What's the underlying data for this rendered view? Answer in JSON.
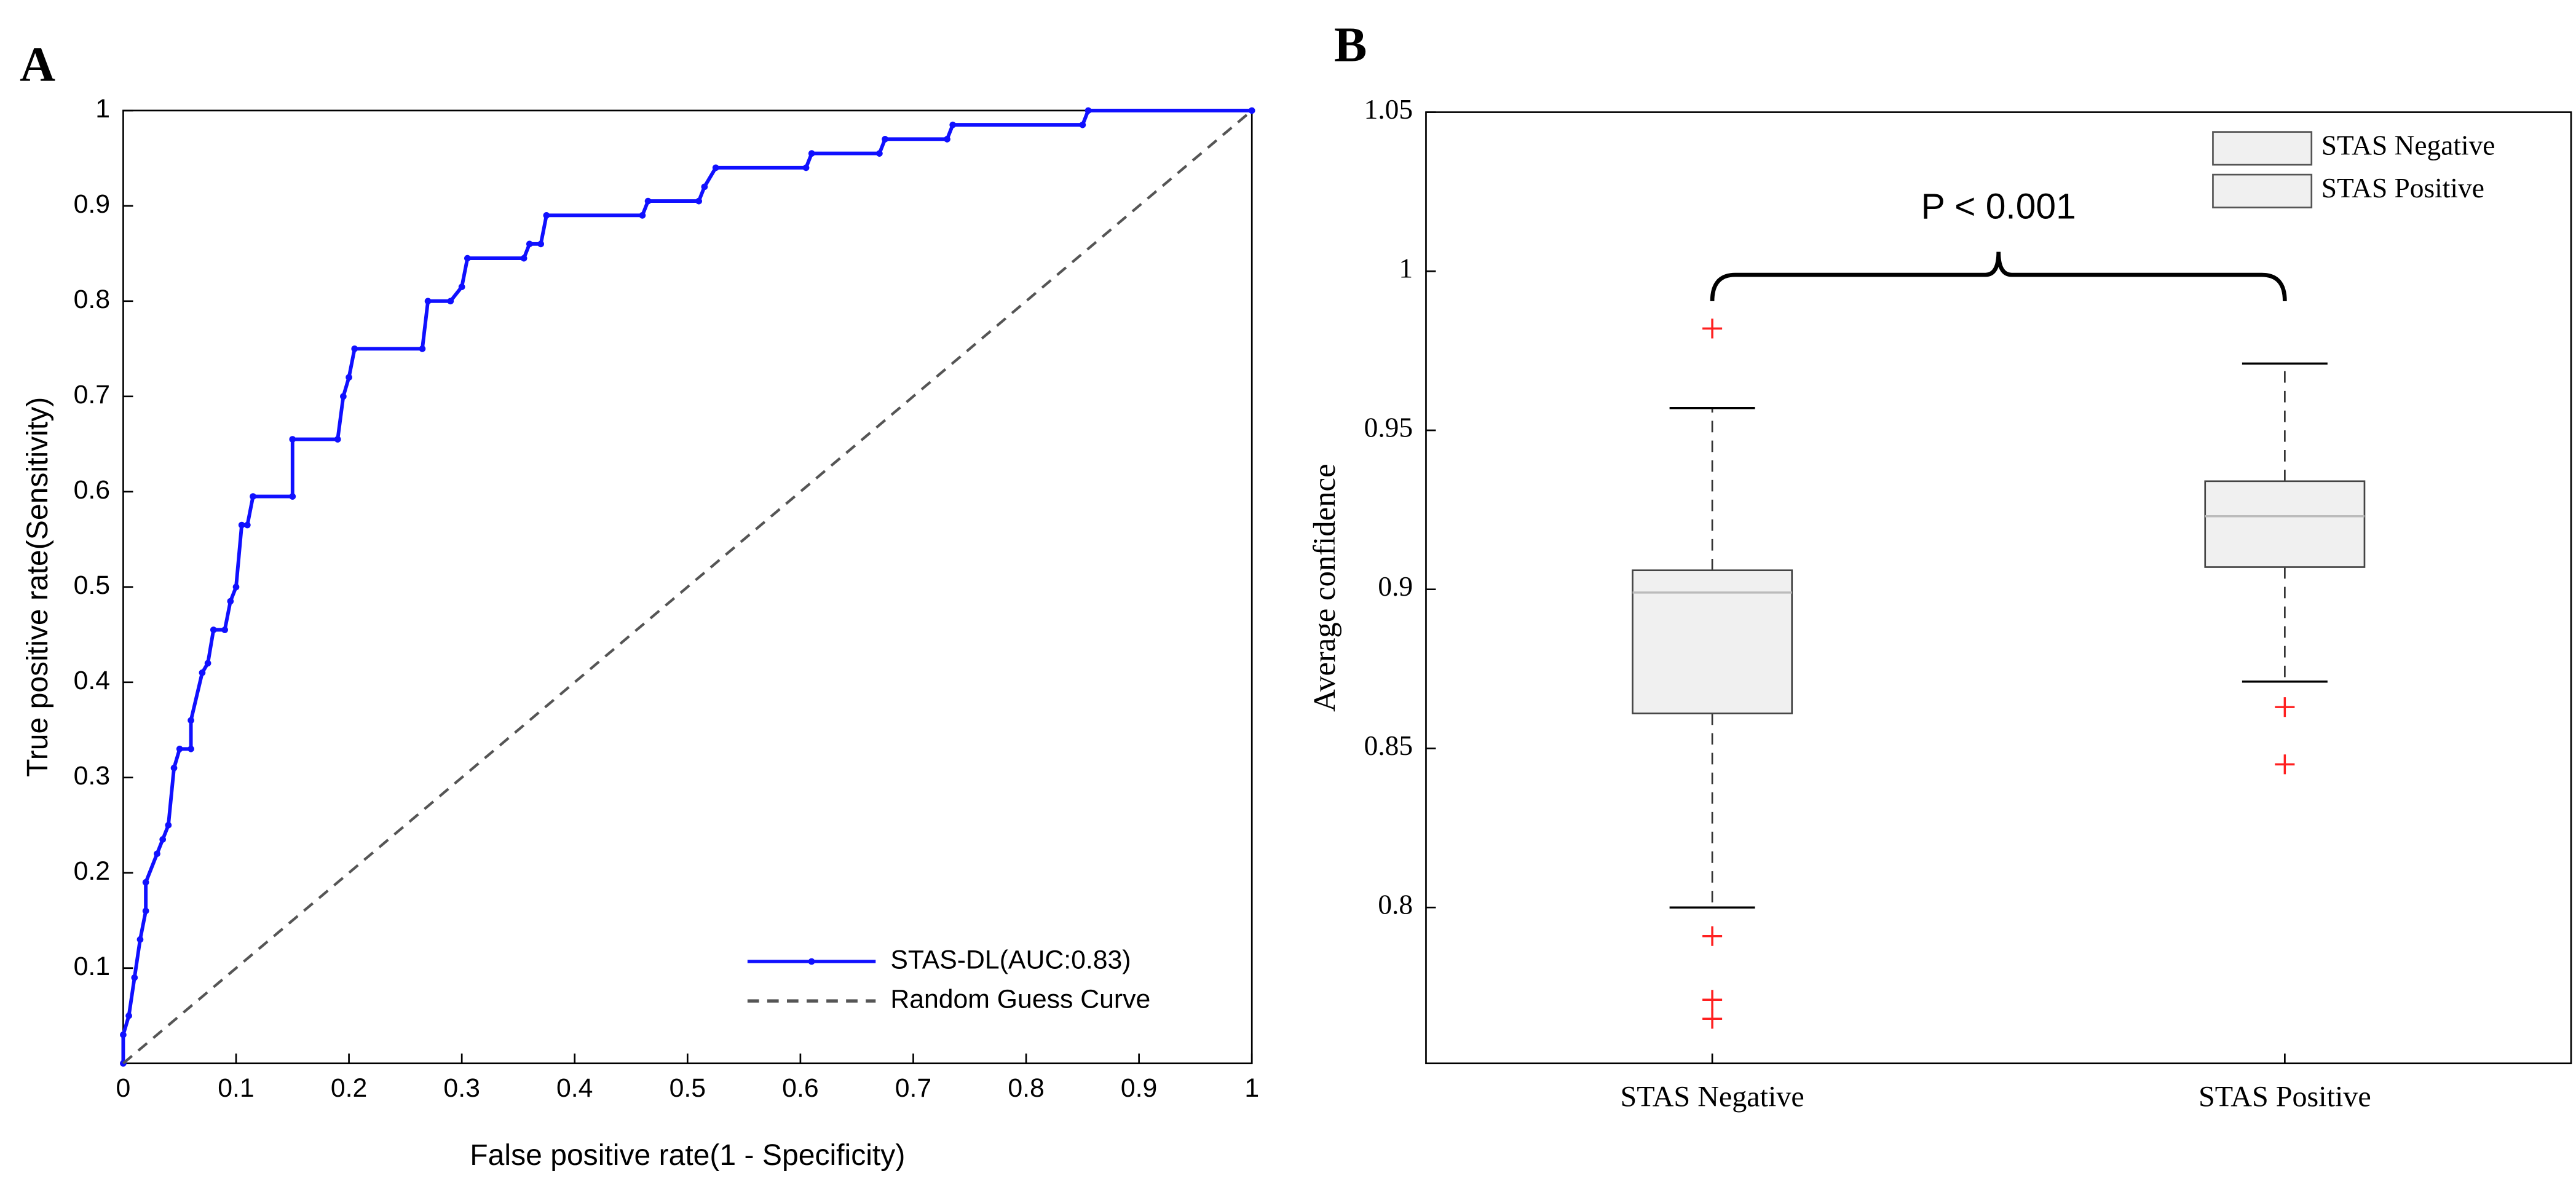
{
  "chart_data": [
    {
      "type": "line",
      "panel_label": "A",
      "xlabel": "False positive rate(1 - Specificity)",
      "ylabel": "True positive rate(Sensitivity)",
      "xlim": [
        0,
        1
      ],
      "ylim": [
        0,
        1
      ],
      "xticks": [
        0,
        0.1,
        0.2,
        0.3,
        0.4,
        0.5,
        0.6,
        0.7,
        0.8,
        0.9,
        1
      ],
      "yticks": [
        0.1,
        0.2,
        0.3,
        0.4,
        0.5,
        0.6,
        0.7,
        0.8,
        0.9,
        1
      ],
      "legend": "lower right",
      "series": [
        {
          "name": "STAS-DL(AUC:0.83)",
          "color": "#1010ff",
          "style": "solid",
          "markers": true,
          "x": [
            0,
            0,
            0.005,
            0.01,
            0.015,
            0.02,
            0.02,
            0.03,
            0.035,
            0.04,
            0.045,
            0.05,
            0.06,
            0.06,
            0.07,
            0.075,
            0.08,
            0.09,
            0.095,
            0.1,
            0.105,
            0.11,
            0.115,
            0.15,
            0.15,
            0.19,
            0.195,
            0.2,
            0.205,
            0.265,
            0.27,
            0.29,
            0.3,
            0.305,
            0.355,
            0.36,
            0.37,
            0.375,
            0.46,
            0.465,
            0.51,
            0.515,
            0.525,
            0.605,
            0.61,
            0.67,
            0.675,
            0.73,
            0.735,
            0.85,
            0.855,
            1
          ],
          "values": [
            0,
            0.03,
            0.05,
            0.09,
            0.13,
            0.16,
            0.19,
            0.22,
            0.235,
            0.25,
            0.31,
            0.33,
            0.33,
            0.36,
            0.41,
            0.42,
            0.455,
            0.455,
            0.485,
            0.5,
            0.565,
            0.565,
            0.595,
            0.595,
            0.655,
            0.655,
            0.7,
            0.72,
            0.75,
            0.75,
            0.8,
            0.8,
            0.815,
            0.845,
            0.845,
            0.86,
            0.86,
            0.89,
            0.89,
            0.905,
            0.905,
            0.92,
            0.94,
            0.94,
            0.955,
            0.955,
            0.97,
            0.97,
            0.985,
            0.985,
            1,
            1
          ]
        },
        {
          "name": "Random Guess Curve",
          "color": "#555555",
          "style": "dashed",
          "markers": false,
          "x": [
            0,
            1
          ],
          "values": [
            0,
            1
          ]
        }
      ]
    },
    {
      "type": "box",
      "panel_label": "B",
      "ylabel": "Average confidence",
      "categories": [
        "STAS Negative",
        "STAS Positive"
      ],
      "ylim": [
        0.751,
        1.05
      ],
      "yticks": [
        0.8,
        0.85,
        0.9,
        0.95,
        1,
        1.05
      ],
      "legend": "upper right",
      "annotation": "P < 0.001",
      "box_color": "#f0f0f0",
      "outlier_color": "#ff2020",
      "series": [
        {
          "name": "STAS Negative",
          "whisker_low": 0.8,
          "q1": 0.861,
          "median": 0.899,
          "q3": 0.906,
          "whisker_high": 0.957,
          "outliers": [
            0.982,
            0.791,
            0.771,
            0.765
          ]
        },
        {
          "name": "STAS Positive",
          "whisker_low": 0.871,
          "q1": 0.907,
          "median": 0.923,
          "q3": 0.934,
          "whisker_high": 0.971,
          "outliers": [
            0.863,
            0.845
          ]
        }
      ]
    }
  ]
}
